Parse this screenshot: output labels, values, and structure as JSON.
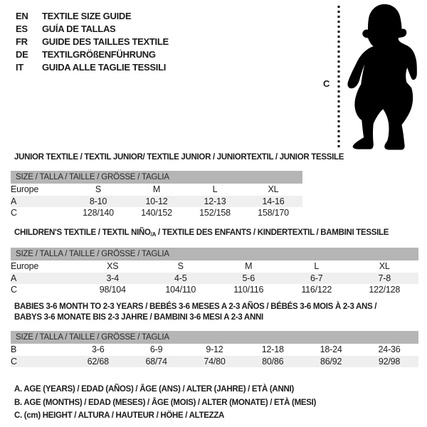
{
  "header": {
    "languages": [
      {
        "code": "EN",
        "label": "TEXTILE SIZE GUIDE"
      },
      {
        "code": "ES",
        "label": "GUÍA DE TALLAS"
      },
      {
        "code": "FR",
        "label": "GUIDE DES TAILLES TEXTILE"
      },
      {
        "code": "DE",
        "label": "TEXTILGRÖßENFÜHRUNG"
      },
      {
        "code": "IT",
        "label": "GUIDA ALLE TAGLIE TESSILI"
      }
    ],
    "figure": {
      "label": "C",
      "depicts": "toddler-silhouette-with-height-line"
    }
  },
  "tables": [
    {
      "title_lines": [
        [
          {
            "text": "JUNIOR TEXTILE / TEXTIL JUNIOR/ TEXTILE JUNIOR / JUNIORTEXTIL / JUNIOR TESSILE"
          }
        ]
      ],
      "size_header": "SIZE / TALLA / TAILLE / GRÖSSE / TAGLIA",
      "rows": [
        {
          "label": "Europe",
          "values": [
            "S",
            "M",
            "L",
            "XL"
          ],
          "shaded": false
        },
        {
          "label": "A",
          "values": [
            "8-10",
            "10-12",
            "12-13",
            "14-16"
          ],
          "shaded": true
        },
        {
          "label": "C",
          "values": [
            "128/140",
            "140/152",
            "152/158",
            "158/170"
          ],
          "shaded": false
        }
      ]
    },
    {
      "title_lines": [
        [
          {
            "text": "CHILDREN'S TEXTILE / TEXTIL NIÑO"
          },
          {
            "text": "/A",
            "sub": true
          },
          {
            "text": " / TEXTILE DES ENFANTS / KINDERTEXTIL / BAMBINI TESSILE"
          }
        ]
      ],
      "size_header": "SIZE / TALLA / TAILLE / GRÖSSE / TAGLIA",
      "rows": [
        {
          "label": "Europe",
          "values": [
            "XS",
            "S",
            "M",
            "L",
            "XL"
          ],
          "shaded": false
        },
        {
          "label": "A",
          "values": [
            "3-4",
            "4-5",
            "5-6",
            "6-7",
            "7-8"
          ],
          "shaded": true
        },
        {
          "label": "C",
          "values": [
            "98/104",
            "104/110",
            "110/116",
            "116/122",
            "122/128"
          ],
          "shaded": false
        }
      ]
    },
    {
      "title_lines": [
        [
          {
            "text": "BABIES 3-6 MONTH TO 2-3 YEARS / BEBÉS 3-6 MESES A 2-3 AÑOS / BÉBÉS 3-6 MOIS À 2-3 ANS /"
          }
        ],
        [
          {
            "text": "BABYS 3-6 MONATE BIS 2-3 JAHRE / BAMBINI 3-6 MESI A 2-3 ANNI"
          }
        ]
      ],
      "size_header": "SIZE / TALLA / TAILLE / GRÖSSE / TAGLIA",
      "rows": [
        {
          "label": "B",
          "values": [
            "3-6",
            "6-9",
            "9-12",
            "12-18",
            "18-24",
            "24-36"
          ],
          "shaded": false
        },
        {
          "label": "C",
          "values": [
            "62/68",
            "68/74",
            "74/80",
            "80/86",
            "86/92",
            "92/98"
          ],
          "shaded": true
        }
      ]
    }
  ],
  "footnotes": [
    "A. AGE (YEARS) / EDAD (AÑOS) / ÂGE (ANS) / ALTER (JAHRE) / ETÀ (ANNI)",
    "B. AGE (MONTHS) / EDAD (MESES) / ÂGE (MOIS) / ALTER (MONATE) / ETÀ (MESI)",
    "C. (cm) HEIGHT / ALTURA / HAUTEUR / HÖHE / ALTEZZA"
  ],
  "colors": {
    "size_header_band": "#b5b5b5",
    "shaded_row": "#efefef",
    "text": "#1c1c1c",
    "silhouette": "#000000"
  }
}
